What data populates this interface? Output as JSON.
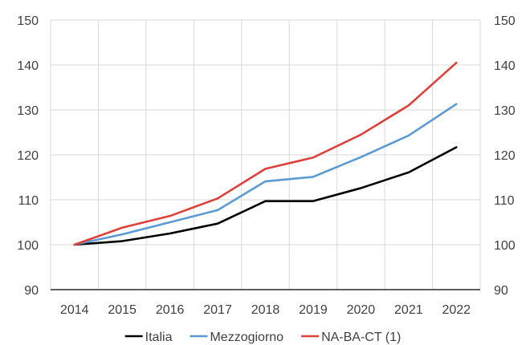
{
  "chart_data": {
    "type": "line",
    "categories": [
      "2014",
      "2015",
      "2016",
      "2017",
      "2018",
      "2019",
      "2020",
      "2021",
      "2022"
    ],
    "series": [
      {
        "name": "Italia",
        "color": "#000000",
        "values": [
          100,
          100.8,
          102.5,
          104.7,
          109.7,
          109.7,
          112.6,
          116.1,
          121.7
        ]
      },
      {
        "name": "Mezzogiorno",
        "color": "#5b9bd5",
        "values": [
          100,
          102.3,
          105,
          107.7,
          114.1,
          115.1,
          119.5,
          124.3,
          131.3
        ]
      },
      {
        "name": "NA-BA-CT (1)",
        "color": "#e0403a",
        "values": [
          100,
          103.8,
          106.4,
          110.3,
          116.9,
          119.4,
          124.5,
          131,
          140.5
        ]
      }
    ],
    "ylim": [
      90,
      150
    ],
    "yticks": [
      90,
      100,
      110,
      120,
      130,
      140,
      150
    ],
    "secondary_axis": true,
    "grid": true,
    "legend_position": "bottom"
  }
}
